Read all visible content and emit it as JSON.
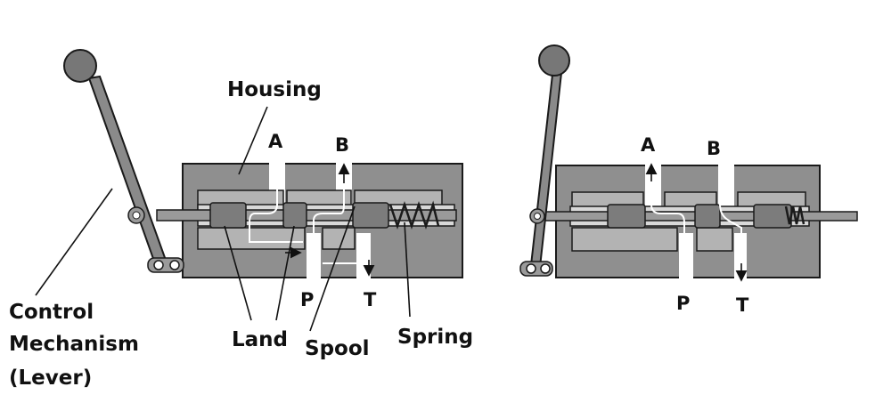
{
  "colors": {
    "housing": "#8f8f8f",
    "housing_dark": "#5a5a5a",
    "housing_light": "#b3b3b3",
    "spool": "#7c7c7c",
    "outline": "#1a1a1a",
    "knob": "#777777",
    "background": "#ffffff"
  },
  "labels": {
    "housing": "Housing",
    "control_line1": "Control",
    "control_line2": "Mechanism",
    "control_line3": "(Lever)",
    "land": "Land",
    "spool": "Spool",
    "spring": "Spring"
  },
  "left_valve": {
    "port_a": "A",
    "port_b": "B",
    "port_p": "P",
    "port_t": "T"
  },
  "right_valve": {
    "port_a": "A",
    "port_b": "B",
    "port_p": "P",
    "port_t": "T"
  }
}
